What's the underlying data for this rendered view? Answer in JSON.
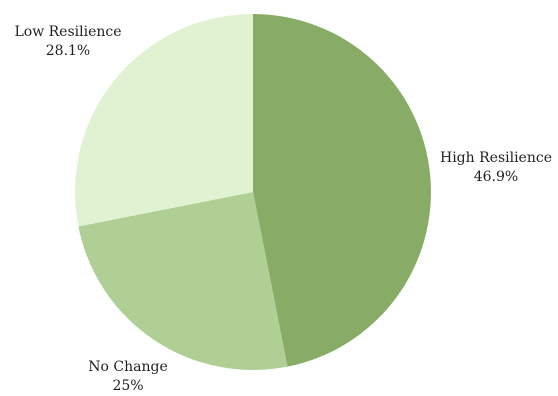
{
  "chart_data": {
    "type": "pie",
    "title": "",
    "slices": [
      {
        "label": "High Resilience",
        "value": 46.9,
        "display": "46.9%",
        "color": "#88ab66"
      },
      {
        "label": "No Change",
        "value": 25.0,
        "display": "25%",
        "color": "#b0cf94"
      },
      {
        "label": "Low Resilience",
        "value": 28.1,
        "display": "28.1%",
        "color": "#e0f2d1"
      }
    ],
    "start_angle_deg": 0,
    "direction": "clockwise",
    "legend": "none",
    "labels": "outside"
  }
}
